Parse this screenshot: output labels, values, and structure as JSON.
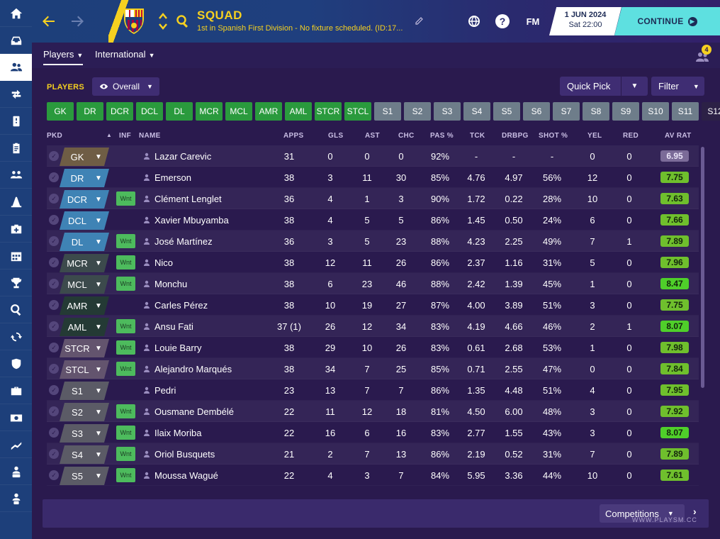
{
  "header": {
    "title": "SQUAD",
    "subtitle": "1st in Spanish First Division - No fixture scheduled. (ID:17...",
    "date": "1 JUN 2024",
    "time": "Sat 22:00",
    "continue_label": "CONTINUE",
    "fm_label": "FM",
    "help_label": "?"
  },
  "subtabs": {
    "players": "Players",
    "international": "International",
    "notification_count": "4"
  },
  "toolbar": {
    "players_label": "PLAYERS",
    "overall_label": "Overall",
    "quick_pick_label": "Quick Pick",
    "filter_label": "Filter"
  },
  "position_tabs": [
    {
      "label": "GK",
      "style": "green"
    },
    {
      "label": "DR",
      "style": "green"
    },
    {
      "label": "DCR",
      "style": "green"
    },
    {
      "label": "DCL",
      "style": "green"
    },
    {
      "label": "DL",
      "style": "green"
    },
    {
      "label": "MCR",
      "style": "green"
    },
    {
      "label": "MCL",
      "style": "green"
    },
    {
      "label": "AMR",
      "style": "green"
    },
    {
      "label": "AML",
      "style": "green"
    },
    {
      "label": "STCR",
      "style": "green"
    },
    {
      "label": "STCL",
      "style": "green"
    },
    {
      "label": "S1",
      "style": "grey"
    },
    {
      "label": "S2",
      "style": "grey"
    },
    {
      "label": "S3",
      "style": "grey"
    },
    {
      "label": "S4",
      "style": "grey"
    },
    {
      "label": "S5",
      "style": "grey"
    },
    {
      "label": "S6",
      "style": "grey"
    },
    {
      "label": "S7",
      "style": "grey"
    },
    {
      "label": "S8",
      "style": "grey"
    },
    {
      "label": "S9",
      "style": "grey"
    },
    {
      "label": "S10",
      "style": "grey"
    },
    {
      "label": "S11",
      "style": "grey"
    },
    {
      "label": "S12",
      "style": "dark"
    }
  ],
  "columns": {
    "pkd": "PKD",
    "inf": "INF",
    "name": "NAME",
    "apps": "APPS",
    "gls": "GLS",
    "ast": "AST",
    "chc": "CHC",
    "pas": "PAS %",
    "tck": "TCK",
    "drbpg": "DRBPG",
    "shot": "SHOT %",
    "yel": "YEL",
    "red": "RED",
    "avrat": "AV RAT"
  },
  "players": [
    {
      "pos": "GK",
      "pos_color": "#6f5d45",
      "inf": "",
      "name": "Lazar Carevic",
      "apps": "31",
      "gls": "0",
      "ast": "0",
      "chc": "0",
      "pas": "92%",
      "tck": "-",
      "drbpg": "-",
      "shot": "-",
      "yel": "0",
      "red": "0",
      "avrat": "6.95",
      "rat_color": "#7b6b98"
    },
    {
      "pos": "DR",
      "pos_color": "#3f83b5",
      "inf": "",
      "name": "Emerson",
      "apps": "38",
      "gls": "3",
      "ast": "11",
      "chc": "30",
      "pas": "85%",
      "tck": "4.76",
      "drbpg": "4.97",
      "shot": "56%",
      "yel": "12",
      "red": "0",
      "avrat": "7.75",
      "rat_color": "#6fbf2d"
    },
    {
      "pos": "DCR",
      "pos_color": "#3f83b5",
      "inf": "Wnt",
      "name": "Clément Lenglet",
      "apps": "36",
      "gls": "4",
      "ast": "1",
      "chc": "3",
      "pas": "90%",
      "tck": "1.72",
      "drbpg": "0.22",
      "shot": "28%",
      "yel": "10",
      "red": "0",
      "avrat": "7.63",
      "rat_color": "#6fbf2d"
    },
    {
      "pos": "DCL",
      "pos_color": "#3f83b5",
      "inf": "",
      "name": "Xavier Mbuyamba",
      "apps": "38",
      "gls": "4",
      "ast": "5",
      "chc": "5",
      "pas": "86%",
      "tck": "1.45",
      "drbpg": "0.50",
      "shot": "24%",
      "yel": "6",
      "red": "0",
      "avrat": "7.66",
      "rat_color": "#6fbf2d"
    },
    {
      "pos": "DL",
      "pos_color": "#3f83b5",
      "inf": "Wnt",
      "name": "José Martínez",
      "apps": "36",
      "gls": "3",
      "ast": "5",
      "chc": "23",
      "pas": "88%",
      "tck": "4.23",
      "drbpg": "2.25",
      "shot": "49%",
      "yel": "7",
      "red": "1",
      "avrat": "7.89",
      "rat_color": "#6fbf2d"
    },
    {
      "pos": "MCR",
      "pos_color": "#3c4a4c",
      "inf": "Wnt",
      "name": "Nico",
      "apps": "38",
      "gls": "12",
      "ast": "11",
      "chc": "26",
      "pas": "86%",
      "tck": "2.37",
      "drbpg": "1.16",
      "shot": "31%",
      "yel": "5",
      "red": "0",
      "avrat": "7.96",
      "rat_color": "#6fbf2d"
    },
    {
      "pos": "MCL",
      "pos_color": "#3c4a4c",
      "inf": "Wnt",
      "name": "Monchu",
      "apps": "38",
      "gls": "6",
      "ast": "23",
      "chc": "46",
      "pas": "88%",
      "tck": "2.42",
      "drbpg": "1.39",
      "shot": "45%",
      "yel": "1",
      "red": "0",
      "avrat": "8.47",
      "rat_color": "#4fcf2a"
    },
    {
      "pos": "AMR",
      "pos_color": "#243a35",
      "inf": "",
      "name": "Carles Pérez",
      "apps": "38",
      "gls": "10",
      "ast": "19",
      "chc": "27",
      "pas": "87%",
      "tck": "4.00",
      "drbpg": "3.89",
      "shot": "51%",
      "yel": "3",
      "red": "0",
      "avrat": "7.75",
      "rat_color": "#6fbf2d"
    },
    {
      "pos": "AML",
      "pos_color": "#243a35",
      "inf": "Wnt",
      "name": "Ansu Fati",
      "apps": "37 (1)",
      "gls": "26",
      "ast": "12",
      "chc": "34",
      "pas": "83%",
      "tck": "4.19",
      "drbpg": "4.66",
      "shot": "46%",
      "yel": "2",
      "red": "1",
      "avrat": "8.07",
      "rat_color": "#4fcf2a"
    },
    {
      "pos": "STCR",
      "pos_color": "#63546e",
      "inf": "Wnt",
      "name": "Louie Barry",
      "apps": "38",
      "gls": "29",
      "ast": "10",
      "chc": "26",
      "pas": "83%",
      "tck": "0.61",
      "drbpg": "2.68",
      "shot": "53%",
      "yel": "1",
      "red": "0",
      "avrat": "7.98",
      "rat_color": "#6fbf2d"
    },
    {
      "pos": "STCL",
      "pos_color": "#63546e",
      "inf": "Wnt",
      "name": "Alejandro Marqués",
      "apps": "38",
      "gls": "34",
      "ast": "7",
      "chc": "25",
      "pas": "85%",
      "tck": "0.71",
      "drbpg": "2.55",
      "shot": "47%",
      "yel": "0",
      "red": "0",
      "avrat": "7.84",
      "rat_color": "#6fbf2d"
    },
    {
      "pos": "S1",
      "pos_color": "#5b5b66",
      "inf": "",
      "name": "Pedri",
      "apps": "23",
      "gls": "13",
      "ast": "7",
      "chc": "7",
      "pas": "86%",
      "tck": "1.35",
      "drbpg": "4.48",
      "shot": "51%",
      "yel": "4",
      "red": "0",
      "avrat": "7.95",
      "rat_color": "#6fbf2d"
    },
    {
      "pos": "S2",
      "pos_color": "#5b5b66",
      "inf": "Wnt",
      "name": "Ousmane Dembélé",
      "apps": "22",
      "gls": "11",
      "ast": "12",
      "chc": "18",
      "pas": "81%",
      "tck": "4.50",
      "drbpg": "6.00",
      "shot": "48%",
      "yel": "3",
      "red": "0",
      "avrat": "7.92",
      "rat_color": "#6fbf2d"
    },
    {
      "pos": "S3",
      "pos_color": "#5b5b66",
      "inf": "Wnt",
      "name": "Ilaix Moriba",
      "apps": "22",
      "gls": "16",
      "ast": "6",
      "chc": "16",
      "pas": "83%",
      "tck": "2.77",
      "drbpg": "1.55",
      "shot": "43%",
      "yel": "3",
      "red": "0",
      "avrat": "8.07",
      "rat_color": "#4fcf2a"
    },
    {
      "pos": "S4",
      "pos_color": "#5b5b66",
      "inf": "Wnt",
      "name": "Oriol Busquets",
      "apps": "21",
      "gls": "2",
      "ast": "7",
      "chc": "13",
      "pas": "86%",
      "tck": "2.19",
      "drbpg": "0.52",
      "shot": "31%",
      "yel": "7",
      "red": "0",
      "avrat": "7.89",
      "rat_color": "#6fbf2d"
    },
    {
      "pos": "S5",
      "pos_color": "#5b5b66",
      "inf": "Wnt",
      "name": "Moussa Wagué",
      "apps": "22",
      "gls": "4",
      "ast": "3",
      "chc": "7",
      "pas": "84%",
      "tck": "5.95",
      "drbpg": "3.36",
      "shot": "44%",
      "yel": "10",
      "red": "0",
      "avrat": "7.61",
      "rat_color": "#6fbf2d"
    }
  ],
  "bottom": {
    "competitions_label": "Competitions"
  },
  "watermark": "WWW.PLAYSM.CC"
}
